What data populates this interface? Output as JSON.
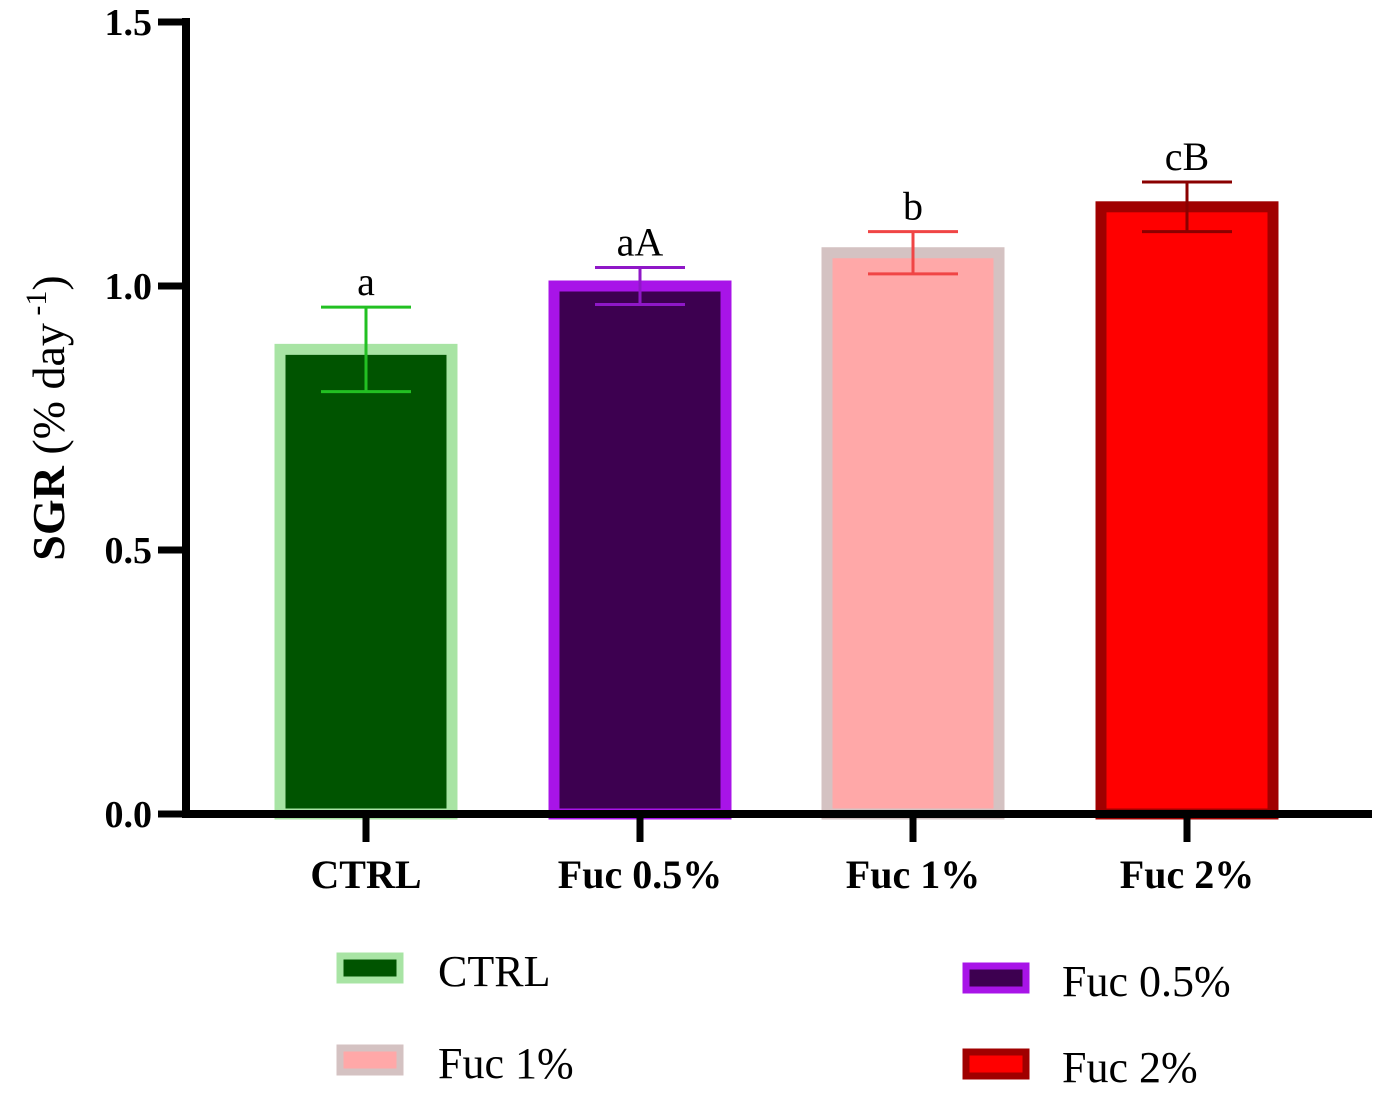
{
  "chart_data": {
    "type": "bar",
    "title": "",
    "xlabel": "",
    "ylabel": {
      "main": "SGR",
      "unit_open": " (% day",
      "superscript": " -1",
      "unit_close": ")"
    },
    "ylim": [
      0,
      1.5
    ],
    "yticks": [
      "0.0",
      "0.5",
      "1.0",
      "1.5"
    ],
    "grid": false,
    "legend_position": "bottom",
    "categories": [
      "CTRL",
      "Fuc 0.5%",
      "Fuc 1%",
      "Fuc 2%"
    ],
    "values": [
      0.88,
      1.0,
      1.063,
      1.15
    ],
    "errors": [
      0.08,
      0.035,
      0.04,
      0.047
    ],
    "significance_labels": [
      "a",
      "aA",
      "b",
      "cB"
    ],
    "series_colors": [
      {
        "fill": "#005400",
        "edge": "#a8e4a4",
        "error": "#22c022"
      },
      {
        "fill": "#3d0050",
        "edge": "#a814e8",
        "error": "#8f17c7"
      },
      {
        "fill": "#ffa8a8",
        "edge": "#d4c2c2",
        "error": "#f04545"
      },
      {
        "fill": "#ff0000",
        "edge": "#a00000",
        "error": "#8a0000"
      }
    ],
    "legend": [
      "CTRL",
      "Fuc 0.5%",
      "Fuc 1%",
      "Fuc 2%"
    ]
  }
}
